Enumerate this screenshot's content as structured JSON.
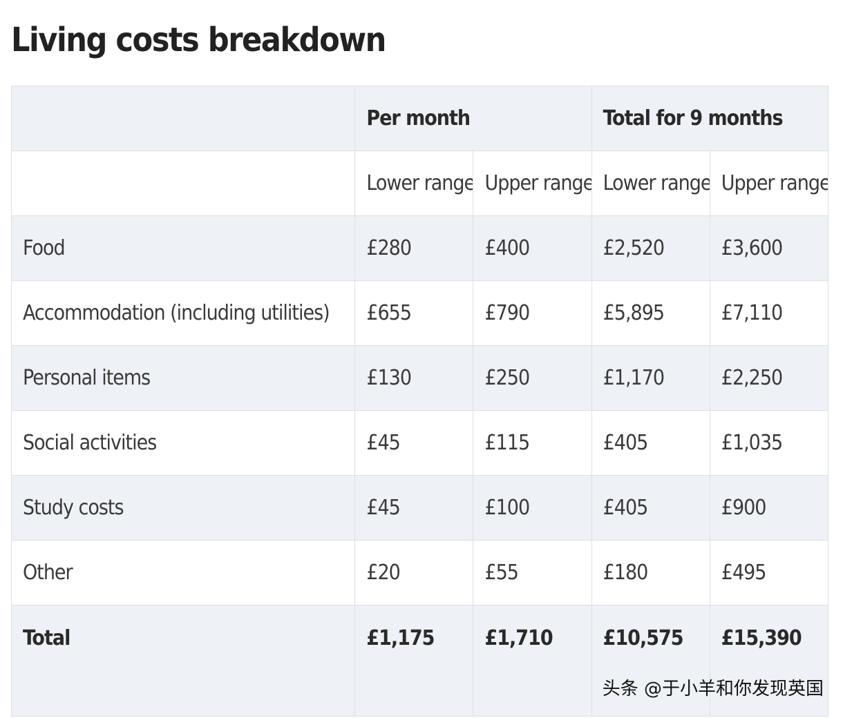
{
  "title": "Living costs breakdown",
  "header": {
    "per_month": "Per month",
    "total_9_months": "Total for 9 months"
  },
  "subheader": {
    "lower": "Lower range",
    "upper": "Upper range"
  },
  "rows": [
    {
      "label": "Food",
      "pm_lower": "£280",
      "pm_upper": "£400",
      "t_lower": "£2,520",
      "t_upper": "£3,600"
    },
    {
      "label": "Accommodation (including utilities)",
      "pm_lower": "£655",
      "pm_upper": "£790",
      "t_lower": "£5,895",
      "t_upper": "£7,110"
    },
    {
      "label": "Personal items",
      "pm_lower": "£130",
      "pm_upper": "£250",
      "t_lower": "£1,170",
      "t_upper": "£2,250"
    },
    {
      "label": "Social activities",
      "pm_lower": "£45",
      "pm_upper": "£115",
      "t_lower": "£405",
      "t_upper": "£1,035"
    },
    {
      "label": "Study costs",
      "pm_lower": "£45",
      "pm_upper": "£100",
      "t_lower": "£405",
      "t_upper": "£900"
    },
    {
      "label": "Other",
      "pm_lower": "£20",
      "pm_upper": "£55",
      "t_lower": "£180",
      "t_upper": "£495"
    }
  ],
  "total": {
    "label": "Total",
    "pm_lower": "£1,175",
    "pm_upper": "£1,710",
    "t_lower": "£10,575",
    "t_upper": "£15,390"
  },
  "watermark": "头条 @于小羊和你发现英国"
}
